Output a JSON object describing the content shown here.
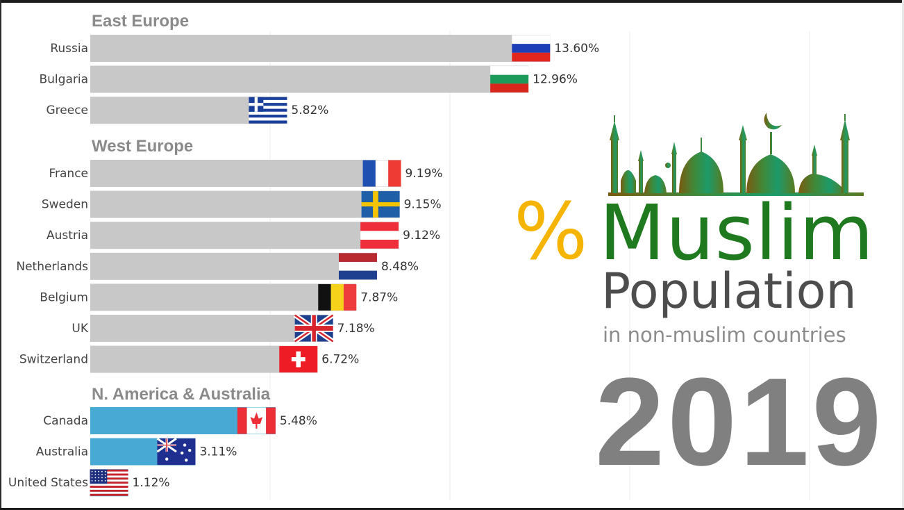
{
  "title_block": {
    "percent_symbol": "%",
    "word_muslim": "Muslim",
    "word_population": "Population",
    "subtitle": "in non-muslim countries",
    "year": "2019"
  },
  "colors": {
    "europe_bar": "#c8c8c8",
    "america_bar": "#48a9d4",
    "muslim_text": "#1f7a1f",
    "percent_symbol": "#f5b400",
    "year_text": "#808080"
  },
  "chart_data": {
    "type": "bar",
    "orientation": "horizontal",
    "x_range": [
      0,
      22
    ],
    "grid": true,
    "value_suffix": "%",
    "groups": [
      {
        "title": "East Europe",
        "bar_color": "#c8c8c8",
        "categories": [
          "Russia",
          "Bulgaria",
          "Greece"
        ],
        "values": [
          13.6,
          12.96,
          5.82
        ],
        "value_labels": [
          "13.60%",
          "12.96%",
          "5.82%"
        ],
        "flags": [
          "russia-flag",
          "bulgaria-flag",
          "greece-flag"
        ]
      },
      {
        "title": "West Europe",
        "bar_color": "#c8c8c8",
        "categories": [
          "France",
          "Sweden",
          "Austria",
          "Netherlands",
          "Belgium",
          "UK",
          "Switzerland"
        ],
        "values": [
          9.19,
          9.15,
          9.12,
          8.48,
          7.87,
          7.18,
          6.72
        ],
        "value_labels": [
          "9.19%",
          "9.15%",
          "9.12%",
          "8.48%",
          "7.87%",
          "7.18%",
          "6.72%"
        ],
        "flags": [
          "france-flag",
          "sweden-flag",
          "austria-flag",
          "netherlands-flag",
          "belgium-flag",
          "uk-flag",
          "switzerland-flag"
        ]
      },
      {
        "title": "N. America & Australia",
        "bar_color": "#48a9d4",
        "categories": [
          "Canada",
          "Australia",
          "United States"
        ],
        "values": [
          5.48,
          3.11,
          1.12
        ],
        "value_labels": [
          "5.48%",
          "3.11%",
          "1.12%"
        ],
        "flags": [
          "canada-flag",
          "australia-flag",
          "usa-flag"
        ]
      }
    ]
  }
}
